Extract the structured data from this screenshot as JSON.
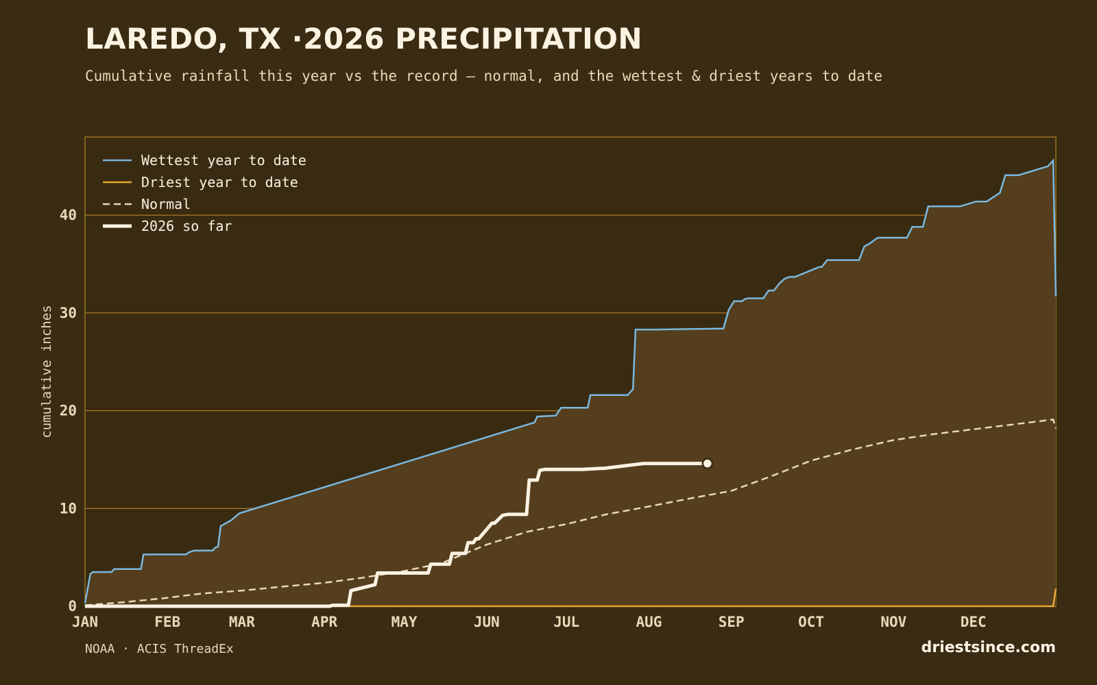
{
  "header": {
    "title": "LAREDO, TX ·2026 PRECIPITATION",
    "subtitle": "Cumulative rainfall this year vs the record — normal, and the wettest & driest years to date"
  },
  "footer": {
    "source": "NOAA · ACIS ThreadEx",
    "brand": "driestsince.com"
  },
  "colors": {
    "background": "#3a2c13",
    "plot_fill": "#543e1d",
    "grid": "#c9902a",
    "wettest": "#7ab8de",
    "driest": "#e8a832",
    "normal": "#e8d9b8",
    "current": "#fbf3e2"
  },
  "chart_data": {
    "type": "line",
    "title": "LAREDO, TX ·2026 PRECIPITATION",
    "subtitle": "Cumulative rainfall this year vs the record — normal, and the wettest & driest years to date",
    "xlabel": "",
    "ylabel": "cumulative inches",
    "x_unit": "day of year",
    "xlim": [
      1,
      366
    ],
    "ylim": [
      0,
      48
    ],
    "yticks": [
      0,
      10,
      20,
      30,
      40
    ],
    "grid": true,
    "legend_position": "top-left",
    "month_ticks": [
      {
        "label": "JAN",
        "day": 1
      },
      {
        "label": "FEB",
        "day": 32
      },
      {
        "label": "MAR",
        "day": 60
      },
      {
        "label": "APR",
        "day": 91
      },
      {
        "label": "MAY",
        "day": 121
      },
      {
        "label": "JUN",
        "day": 152
      },
      {
        "label": "JUL",
        "day": 182
      },
      {
        "label": "AUG",
        "day": 213
      },
      {
        "label": "SEP",
        "day": 244
      },
      {
        "label": "OCT",
        "day": 274
      },
      {
        "label": "NOV",
        "day": 305
      },
      {
        "label": "DEC",
        "day": 335
      }
    ],
    "series": [
      {
        "name": "Wettest year to date",
        "style": "solid",
        "x": [
          1,
          3,
          4,
          11,
          12,
          22,
          23,
          39,
          40,
          41,
          42,
          49,
          50,
          51,
          52,
          56,
          59,
          170,
          171,
          178,
          179,
          180,
          181,
          182,
          190,
          191,
          192,
          205,
          207,
          208,
          213,
          215,
          216,
          239,
          240,
          241,
          243,
          245,
          246,
          248,
          249,
          250,
          256,
          258,
          260,
          262,
          264,
          266,
          268,
          277,
          278,
          280,
          285,
          286,
          288,
          291,
          292,
          294,
          296,
          299,
          300,
          302,
          304,
          308,
          310,
          312,
          316,
          318,
          326,
          330,
          336,
          340,
          345,
          347,
          352,
          363,
          365,
          366
        ],
        "y": [
          0.3,
          3.3,
          3.5,
          3.5,
          3.8,
          3.8,
          5.3,
          5.3,
          5.5,
          5.6,
          5.7,
          5.7,
          6.0,
          6.1,
          8.2,
          8.8,
          9.5,
          18.8,
          19.4,
          19.5,
          19.9,
          20.3,
          20.3,
          20.3,
          20.3,
          21.6,
          21.6,
          21.6,
          22.2,
          28.3,
          28.3,
          28.3,
          28.3,
          28.4,
          28.4,
          28.4,
          30.3,
          31.2,
          31.2,
          31.2,
          31.4,
          31.5,
          31.5,
          32.3,
          32.3,
          33.0,
          33.5,
          33.7,
          33.7,
          34.7,
          34.7,
          35.4,
          35.4,
          35.4,
          35.4,
          35.4,
          35.4,
          36.8,
          37.1,
          37.7,
          37.7,
          37.7,
          37.7,
          37.7,
          37.7,
          38.8,
          38.8,
          40.9,
          40.9,
          40.9,
          41.4,
          41.4,
          42.3,
          44.1,
          44.1,
          45.0,
          45.6,
          31.7
        ]
      },
      {
        "name": "Driest year to date",
        "style": "solid",
        "x": [
          1,
          365,
          366
        ],
        "y": [
          0,
          0,
          1.8
        ]
      },
      {
        "name": "Normal",
        "style": "dashed",
        "x": [
          1,
          15,
          30,
          45,
          60,
          75,
          91,
          105,
          121,
          135,
          152,
          167,
          182,
          197,
          213,
          228,
          244,
          259,
          274,
          289,
          305,
          320,
          335,
          350,
          365,
          366
        ],
        "y": [
          0.1,
          0.4,
          0.8,
          1.3,
          1.6,
          2.0,
          2.4,
          2.9,
          3.6,
          4.4,
          6.3,
          7.6,
          8.4,
          9.4,
          10.2,
          11.0,
          11.8,
          13.3,
          14.9,
          16.0,
          17.0,
          17.6,
          18.1,
          18.6,
          19.1,
          18.2
        ]
      },
      {
        "name": "2026 so far",
        "style": "solid-thick",
        "x": [
          1,
          93,
          94,
          96,
          98,
          100,
          101,
          110,
          111,
          130,
          131,
          138,
          139,
          144,
          145,
          147,
          148,
          149,
          154,
          155,
          158,
          160,
          167,
          168,
          171,
          172,
          174,
          188,
          195,
          196,
          211,
          214,
          235
        ],
        "y": [
          0,
          0,
          0.1,
          0.1,
          0.1,
          0.1,
          1.6,
          2.2,
          3.4,
          3.4,
          4.3,
          4.3,
          5.4,
          5.4,
          6.5,
          6.5,
          6.9,
          6.9,
          8.5,
          8.5,
          9.3,
          9.4,
          9.4,
          12.9,
          12.9,
          13.9,
          14.0,
          14.0,
          14.1,
          14.1,
          14.6,
          14.6,
          14.6
        ]
      }
    ],
    "current_marker": {
      "x": 235,
      "y": 14.6
    }
  }
}
